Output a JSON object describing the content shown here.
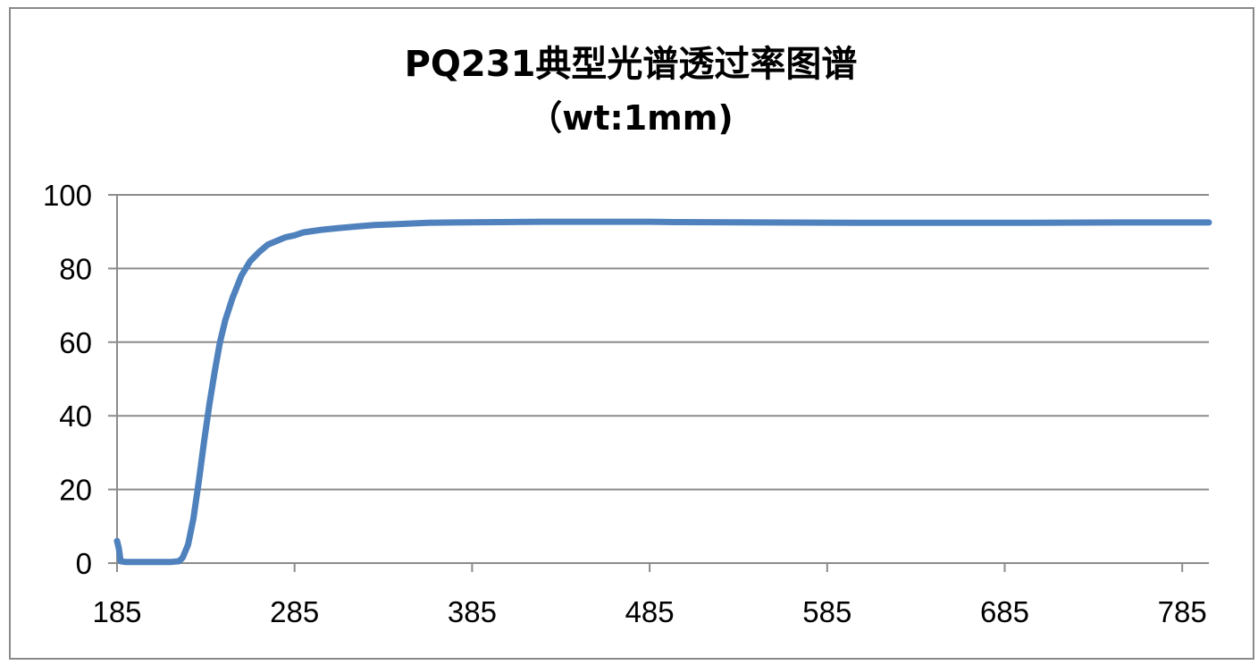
{
  "chart_data": {
    "type": "line",
    "title": "PQ231典型光谱透过率图谱",
    "subtitle": "（wt:1mm)",
    "xlabel": "",
    "ylabel": "",
    "xlim": [
      185,
      800
    ],
    "ylim": [
      0,
      100
    ],
    "x_ticks": [
      "185",
      "285",
      "385",
      "485",
      "585",
      "685",
      "785"
    ],
    "y_ticks": [
      "0",
      "20",
      "40",
      "60",
      "80",
      "100"
    ],
    "grid": true,
    "legend": "none",
    "series": [
      {
        "color": "#4f81bd",
        "points": [
          [
            185,
            6
          ],
          [
            186,
            4
          ],
          [
            187,
            0.5
          ],
          [
            190,
            0.3
          ],
          [
            200,
            0.3
          ],
          [
            210,
            0.3
          ],
          [
            215,
            0.3
          ],
          [
            220,
            0.5
          ],
          [
            222,
            1.5
          ],
          [
            225,
            5
          ],
          [
            228,
            12
          ],
          [
            231,
            22
          ],
          [
            234,
            33
          ],
          [
            237,
            43
          ],
          [
            240,
            52
          ],
          [
            243,
            60
          ],
          [
            246,
            66
          ],
          [
            250,
            72
          ],
          [
            255,
            78
          ],
          [
            260,
            82
          ],
          [
            265,
            84.5
          ],
          [
            270,
            86.5
          ],
          [
            275,
            87.5
          ],
          [
            280,
            88.5
          ],
          [
            285,
            89
          ],
          [
            290,
            89.8
          ],
          [
            300,
            90.5
          ],
          [
            310,
            91
          ],
          [
            320,
            91.4
          ],
          [
            330,
            91.8
          ],
          [
            340,
            92
          ],
          [
            350,
            92.2
          ],
          [
            360,
            92.4
          ],
          [
            375,
            92.5
          ],
          [
            400,
            92.6
          ],
          [
            425,
            92.7
          ],
          [
            450,
            92.7
          ],
          [
            485,
            92.7
          ],
          [
            500,
            92.6
          ],
          [
            550,
            92.5
          ],
          [
            600,
            92.4
          ],
          [
            650,
            92.4
          ],
          [
            700,
            92.4
          ],
          [
            750,
            92.5
          ],
          [
            785,
            92.5
          ],
          [
            800,
            92.5
          ]
        ]
      }
    ]
  }
}
